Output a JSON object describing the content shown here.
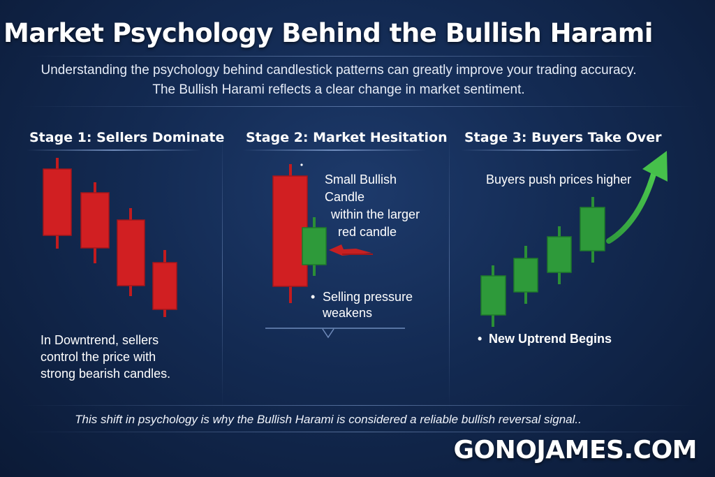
{
  "header": {
    "title": "Market Psychology Behind the Bullish Harami",
    "subtitle_line1": "Understanding the psychology behind candlestick patterns can greatly improve your trading accuracy.",
    "subtitle_line2": "The Bullish Harami reflects a clear change in market sentiment."
  },
  "stage1": {
    "title": "Stage 1: Sellers Dominate",
    "text_line1": "In Downtrend, sellers",
    "text_line2": "control the price with",
    "text_line3": "strong bearish candles."
  },
  "stage2": {
    "title": "Stage 2: Market Hesitation",
    "label_line1": "Small Bullish",
    "label_line2": "Candle",
    "label_line3": "within the larger",
    "label_line4": "red candle",
    "bullet_line1": "Selling pressure",
    "bullet_line2": "weakens"
  },
  "stage3": {
    "title": "Stage 3: Buyers Take Over",
    "label": "Buyers push prices higher",
    "bullet": "New Uptrend  Begins"
  },
  "footer": {
    "note": "This shift in psychology is why the Bullish Harami is considered a reliable bullish reversal signal..",
    "brand": "GONOJAMES.COM"
  },
  "colors": {
    "bearish": "#d11f22",
    "bullish": "#2e9a3a",
    "background": "#132a52"
  }
}
